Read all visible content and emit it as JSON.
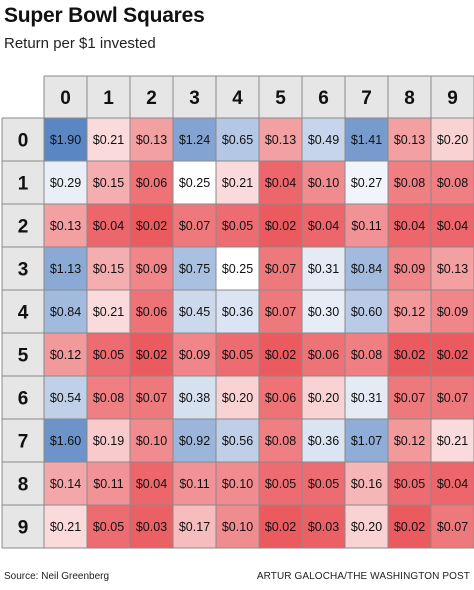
{
  "page": {
    "title": "Super Bowl Squares",
    "subtitle": "Return per $1 invested",
    "source": "Source: Neil Greenberg",
    "credit": "ARTUR GALOCHA/THE WASHINGTON POST"
  },
  "chart_data": {
    "type": "heatmap",
    "x_labels": [
      "0",
      "1",
      "2",
      "3",
      "4",
      "5",
      "6",
      "7",
      "8",
      "9"
    ],
    "y_labels": [
      "0",
      "1",
      "2",
      "3",
      "4",
      "5",
      "6",
      "7",
      "8",
      "9"
    ],
    "value_prefix": "$",
    "value_decimals": 2,
    "neutral_value": 0.25,
    "colors": {
      "low": "#ea5a5f",
      "neutral": "#ffffff",
      "high": "#5b86c4",
      "header_bg": "#e6e6e6",
      "border": "#8a8a8a"
    },
    "values": [
      [
        1.9,
        0.21,
        0.13,
        1.24,
        0.65,
        0.13,
        0.49,
        1.41,
        0.13,
        0.2
      ],
      [
        0.29,
        0.15,
        0.06,
        0.25,
        0.21,
        0.04,
        0.1,
        0.27,
        0.08,
        0.08
      ],
      [
        0.13,
        0.04,
        0.02,
        0.07,
        0.05,
        0.02,
        0.04,
        0.11,
        0.04,
        0.04
      ],
      [
        1.13,
        0.15,
        0.09,
        0.75,
        0.25,
        0.07,
        0.31,
        0.84,
        0.09,
        0.13
      ],
      [
        0.84,
        0.21,
        0.06,
        0.45,
        0.36,
        0.07,
        0.3,
        0.6,
        0.12,
        0.09
      ],
      [
        0.12,
        0.05,
        0.02,
        0.09,
        0.05,
        0.02,
        0.06,
        0.08,
        0.02,
        0.02
      ],
      [
        0.54,
        0.08,
        0.07,
        0.38,
        0.2,
        0.06,
        0.2,
        0.31,
        0.07,
        0.07
      ],
      [
        1.6,
        0.19,
        0.1,
        0.92,
        0.56,
        0.08,
        0.36,
        1.07,
        0.12,
        0.21
      ],
      [
        0.14,
        0.11,
        0.04,
        0.11,
        0.1,
        0.05,
        0.05,
        0.16,
        0.05,
        0.04
      ],
      [
        0.21,
        0.05,
        0.03,
        0.17,
        0.1,
        0.02,
        0.03,
        0.2,
        0.02,
        0.07
      ]
    ]
  }
}
